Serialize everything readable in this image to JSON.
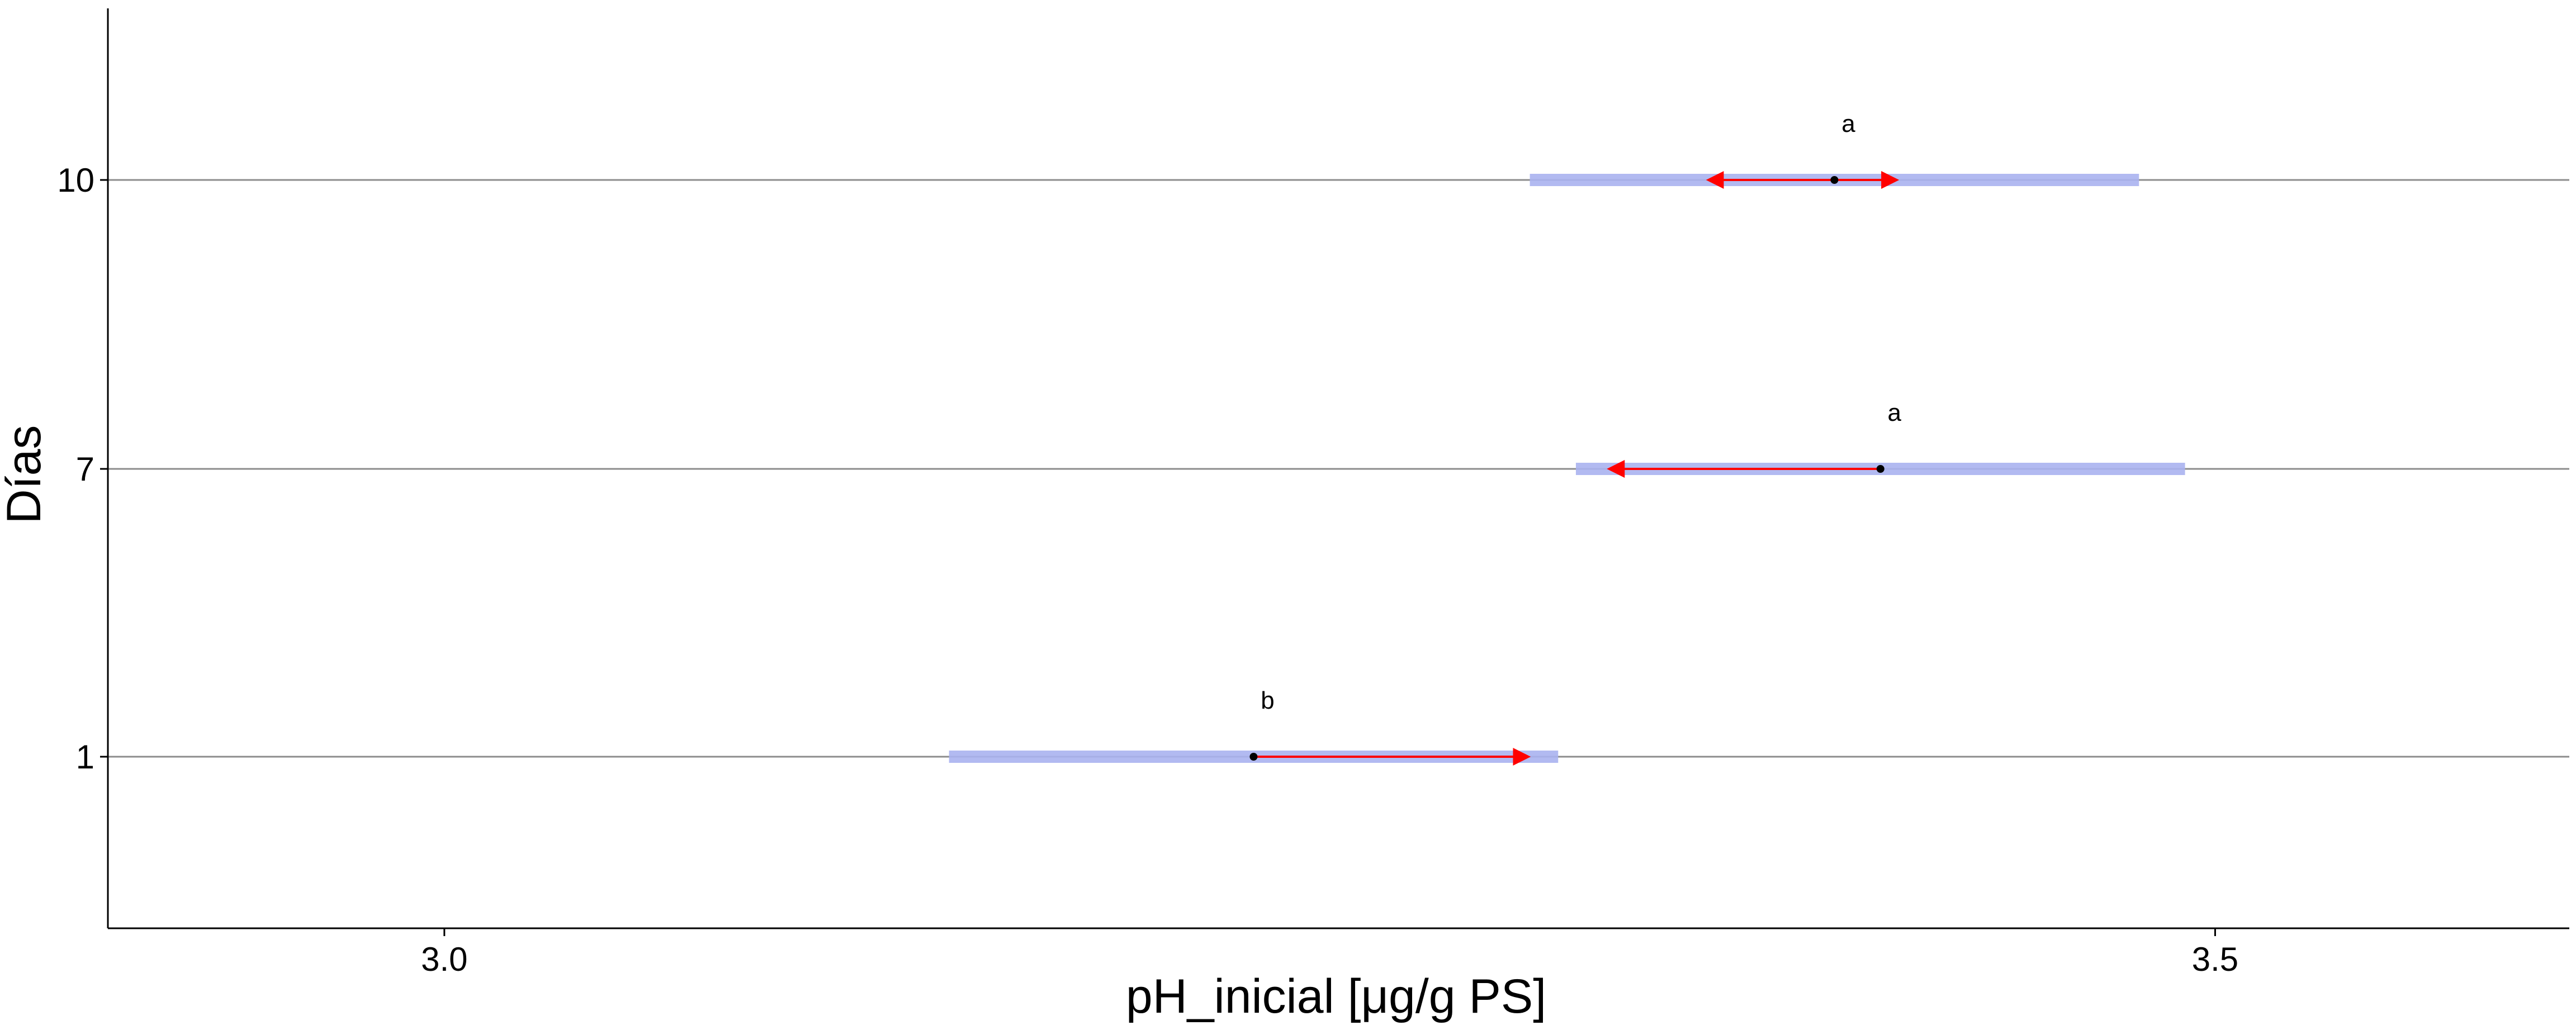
{
  "chart_data": {
    "type": "scatter",
    "xlabel": "pH_inicial [μg/g PS]",
    "ylabel": "Días",
    "xlim": [
      2.905,
      3.6
    ],
    "x_ticks": [
      3.0,
      3.5
    ],
    "x_tick_labels": [
      "3.0",
      "3.5"
    ],
    "y_categories": [
      "1",
      "7",
      "10"
    ],
    "grid": "horizontal lines at each category",
    "points": [
      {
        "day": "1",
        "mean": 3.2285,
        "ci_low": 3.1425,
        "ci_high": 3.3145,
        "arrow_low": 3.2285,
        "arrow_high": 3.3055,
        "group": "b"
      },
      {
        "day": "7",
        "mean": 3.4055,
        "ci_low": 3.3195,
        "ci_high": 3.4915,
        "arrow_low": 3.3295,
        "arrow_high": 3.4055,
        "group": "a"
      },
      {
        "day": "10",
        "mean": 3.3925,
        "ci_low": 3.3065,
        "ci_high": 3.4785,
        "arrow_low": 3.3575,
        "arrow_high": 3.4095,
        "group": "a"
      }
    ],
    "colors": {
      "ci_band": "#aab3f0",
      "arrow": "#ff0000",
      "point": "#000000",
      "gridline": "#8c8c8c",
      "axis": "#000000"
    }
  }
}
